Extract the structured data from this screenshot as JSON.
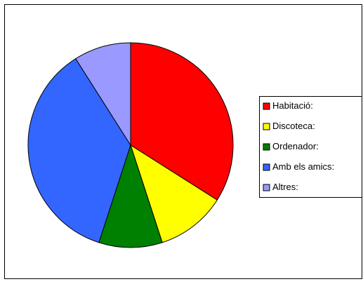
{
  "chart_data": {
    "type": "pie",
    "categories": [
      "Habitació:",
      "Discoteca:",
      "Ordenador:",
      "Amb els amics:",
      "Altres:"
    ],
    "values": [
      34,
      11,
      10,
      36,
      9
    ],
    "colors": [
      "#ff0000",
      "#ffff00",
      "#008000",
      "#3366ff",
      "#9999ff"
    ],
    "legend": "right"
  }
}
